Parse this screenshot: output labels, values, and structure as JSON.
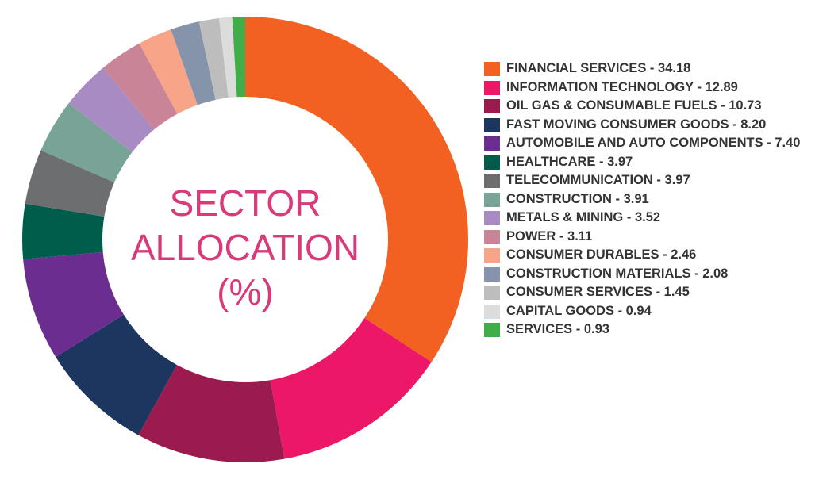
{
  "chart_data": {
    "type": "donut",
    "title": "SECTOR ALLOCATION (%)",
    "legend_separator": " - ",
    "categories": [
      "FINANCIAL SERVICES",
      "INFORMATION TECHNOLOGY",
      "OIL GAS & CONSUMABLE FUELS",
      "FAST MOVING CONSUMER GOODS",
      "AUTOMOBILE AND AUTO COMPONENTS",
      "HEALTHCARE",
      "TELECOMMUNICATION",
      "CONSTRUCTION",
      "METALS & MINING",
      "POWER",
      "CONSUMER DURABLES",
      "CONSTRUCTION MATERIALS",
      "CONSUMER SERVICES",
      "CAPITAL GOODS",
      "SERVICES"
    ],
    "values": [
      34.18,
      12.89,
      10.73,
      8.2,
      7.4,
      3.97,
      3.97,
      3.91,
      3.52,
      3.11,
      2.46,
      2.08,
      1.45,
      0.94,
      0.93
    ],
    "value_labels": [
      "34.18",
      "12.89",
      "10.73",
      "8.20",
      "7.40",
      "3.97",
      "3.97",
      "3.91",
      "3.52",
      "3.11",
      "2.46",
      "2.08",
      "1.45",
      "0.94",
      "0.93"
    ],
    "colors": [
      "#f26122",
      "#ec1766",
      "#9b1b4e",
      "#1c3660",
      "#6c2d91",
      "#005c4b",
      "#6d6e70",
      "#7aa398",
      "#a98bc4",
      "#c98497",
      "#f7a488",
      "#8593ab",
      "#bdbdbd",
      "#dcdcdc",
      "#3fae49"
    ],
    "legend_position": "right"
  }
}
